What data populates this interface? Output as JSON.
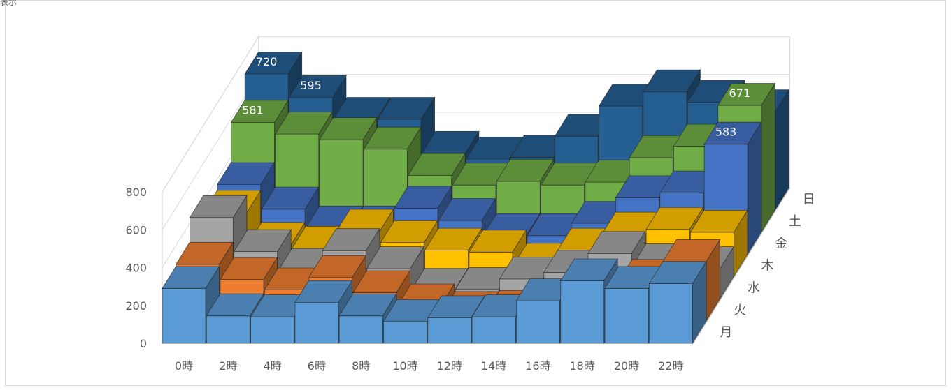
{
  "corner_text": "表示",
  "chart_data": {
    "type": "bar",
    "subtype": "3d-column",
    "categories": [
      "0時",
      "2時",
      "4時",
      "6時",
      "8時",
      "10時",
      "12時",
      "14時",
      "16時",
      "18時",
      "20時",
      "22時"
    ],
    "series": [
      {
        "name": "月",
        "color": "#5b9bd5",
        "values": [
          290,
          145,
          140,
          215,
          145,
          115,
          135,
          140,
          225,
          330,
          290,
          315
        ]
      },
      {
        "name": "火",
        "color": "#ed7d31",
        "values": [
          300,
          220,
          165,
          230,
          150,
          80,
          40,
          45,
          55,
          135,
          210,
          315
        ]
      },
      {
        "name": "水",
        "color": "#a5a5a5",
        "values": [
          430,
          250,
          150,
          255,
          160,
          45,
          50,
          105,
          140,
          240,
          175,
          160
        ]
      },
      {
        "name": "木",
        "color": "#ffc000",
        "values": [
          340,
          170,
          150,
          240,
          180,
          140,
          130,
          60,
          140,
          225,
          250,
          235
        ]
      },
      {
        "name": "金",
        "color": "#4472c4",
        "values": [
          370,
          240,
          140,
          140,
          245,
          180,
          100,
          100,
          165,
          300,
          325,
          583
        ]
      },
      {
        "name": "土",
        "color": "#70ad47",
        "values": [
          581,
          520,
          490,
          440,
          300,
          250,
          270,
          250,
          265,
          395,
          455,
          671
        ]
      },
      {
        "name": "日",
        "color": "#255e91",
        "values": [
          720,
          595,
          480,
          480,
          300,
          270,
          280,
          390,
          550,
          625,
          570,
          520
        ]
      }
    ],
    "data_labels": [
      {
        "series": "日",
        "category": "0時",
        "value": 720
      },
      {
        "series": "日",
        "category": "2時",
        "value": 595
      },
      {
        "series": "土",
        "category": "0時",
        "value": 581
      },
      {
        "series": "土",
        "category": "22時",
        "value": 671
      },
      {
        "series": "金",
        "category": "22時",
        "value": 583
      }
    ],
    "y_ticks": [
      "0",
      "200",
      "400",
      "600",
      "800"
    ],
    "ylim": [
      0,
      800
    ],
    "grid": true,
    "legend": "none (series labels on depth axis)"
  }
}
